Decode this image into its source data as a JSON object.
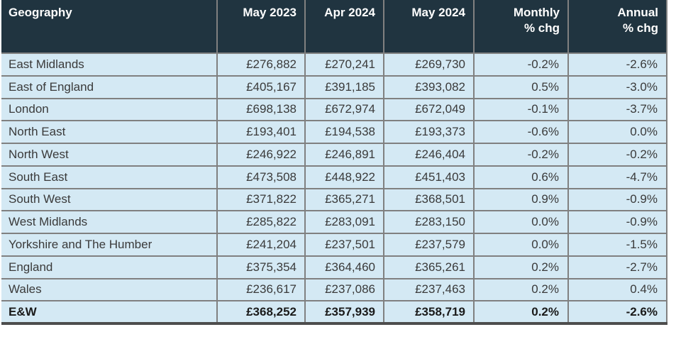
{
  "chart_data": {
    "type": "table",
    "columns": [
      "Geography",
      "May 2023",
      "Apr 2024",
      "May 2024",
      "Monthly % chg",
      "Annual % chg"
    ],
    "rows": [
      {
        "geography": "East Midlands",
        "may_2023": "£276,882",
        "apr_2024": "£270,241",
        "may_2024": "£269,730",
        "monthly": "-0.2%",
        "annual": "-2.6%",
        "bold": false
      },
      {
        "geography": "East of England",
        "may_2023": "£405,167",
        "apr_2024": "£391,185",
        "may_2024": "£393,082",
        "monthly": "0.5%",
        "annual": "-3.0%",
        "bold": false
      },
      {
        "geography": "London",
        "may_2023": "£698,138",
        "apr_2024": "£672,974",
        "may_2024": "£672,049",
        "monthly": "-0.1%",
        "annual": "-3.7%",
        "bold": false
      },
      {
        "geography": "North East",
        "may_2023": "£193,401",
        "apr_2024": "£194,538",
        "may_2024": "£193,373",
        "monthly": "-0.6%",
        "annual": "0.0%",
        "bold": false
      },
      {
        "geography": "North West",
        "may_2023": "£246,922",
        "apr_2024": "£246,891",
        "may_2024": "£246,404",
        "monthly": "-0.2%",
        "annual": "-0.2%",
        "bold": false
      },
      {
        "geography": "South East",
        "may_2023": "£473,508",
        "apr_2024": "£448,922",
        "may_2024": "£451,403",
        "monthly": "0.6%",
        "annual": "-4.7%",
        "bold": false
      },
      {
        "geography": "South West",
        "may_2023": "£371,822",
        "apr_2024": "£365,271",
        "may_2024": "£368,501",
        "monthly": "0.9%",
        "annual": "-0.9%",
        "bold": false
      },
      {
        "geography": "West Midlands",
        "may_2023": "£285,822",
        "apr_2024": "£283,091",
        "may_2024": "£283,150",
        "monthly": "0.0%",
        "annual": "-0.9%",
        "bold": false
      },
      {
        "geography": "Yorkshire and The Humber",
        "may_2023": "£241,204",
        "apr_2024": "£237,501",
        "may_2024": "£237,579",
        "monthly": "0.0%",
        "annual": "-1.5%",
        "bold": false
      },
      {
        "geography": "England",
        "may_2023": "£375,354",
        "apr_2024": "£364,460",
        "may_2024": "£365,261",
        "monthly": "0.2%",
        "annual": "-2.7%",
        "bold": false
      },
      {
        "geography": "Wales",
        "may_2023": "£236,617",
        "apr_2024": "£237,086",
        "may_2024": "£237,463",
        "monthly": "0.2%",
        "annual": "0.4%",
        "bold": false
      },
      {
        "geography": "E&W",
        "may_2023": "£368,252",
        "apr_2024": "£357,939",
        "may_2024": "£358,719",
        "monthly": "0.2%",
        "annual": "-2.6%",
        "bold": true
      }
    ]
  },
  "header": {
    "geography": {
      "label": "Geography",
      "sublabel": ""
    },
    "may_2023": {
      "label": "May 2023",
      "sublabel": ""
    },
    "apr_2024": {
      "label": "Apr 2024",
      "sublabel": ""
    },
    "may_2024": {
      "label": "May 2024",
      "sublabel": ""
    },
    "monthly": {
      "label": "Monthly",
      "sublabel": "% chg"
    },
    "annual": {
      "label": "Annual",
      "sublabel": "% chg"
    }
  },
  "colors": {
    "header_bg": "#203440",
    "row_bg": "#d4e9f4",
    "grid_line": "#808080",
    "bottom_bar": "#4d4d4d",
    "header_text": "#ffffff",
    "body_text": "#3a3a3a"
  }
}
